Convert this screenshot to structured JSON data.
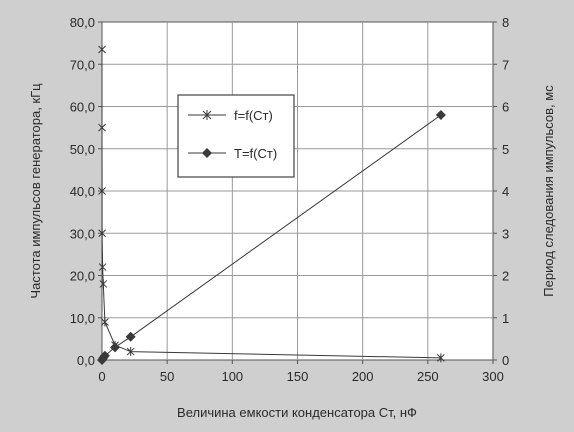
{
  "chart_data": {
    "type": "line",
    "title": "",
    "xlabel": "Величина емкости конденсатора Ст, нФ",
    "ylabel": "Частота импульсов генератора, кГц",
    "y2label": "Период следования импульсов, мс",
    "xlim": [
      0,
      300
    ],
    "ylim": [
      0,
      80
    ],
    "y2lim": [
      0,
      8
    ],
    "grid": true,
    "legend": "upper-center",
    "x_ticks": [
      "0",
      "50",
      "100",
      "150",
      "200",
      "250",
      "300"
    ],
    "y_ticks": [
      "0,0",
      "10,0",
      "20,0",
      "30,0",
      "40,0",
      "50,0",
      "60,0",
      "70,0",
      "80,0"
    ],
    "y2_ticks": [
      "0",
      "1",
      "2",
      "3",
      "4",
      "5",
      "6",
      "7",
      "8"
    ],
    "series": [
      {
        "name": "f=f(Ст)",
        "axis": "left",
        "marker": "star",
        "x": [
          0.01,
          0.02,
          0.05,
          0.1,
          0.47,
          1,
          2.2,
          10,
          22,
          260
        ],
        "y": [
          73.5,
          55.0,
          40.0,
          30.0,
          22.0,
          18.0,
          9.0,
          3.5,
          2.0,
          0.5
        ]
      },
      {
        "name": "T=f(Ст)",
        "axis": "right",
        "marker": "diamond",
        "x": [
          0.01,
          1,
          2.2,
          10,
          22,
          260
        ],
        "y": [
          0.0,
          0.05,
          0.1,
          0.3,
          0.55,
          5.8
        ]
      }
    ]
  },
  "colors": {
    "background": "#cfcfcf",
    "plot_area": "#ffffff",
    "grid": "#9a9a9a",
    "series": "#3a3a3a"
  }
}
